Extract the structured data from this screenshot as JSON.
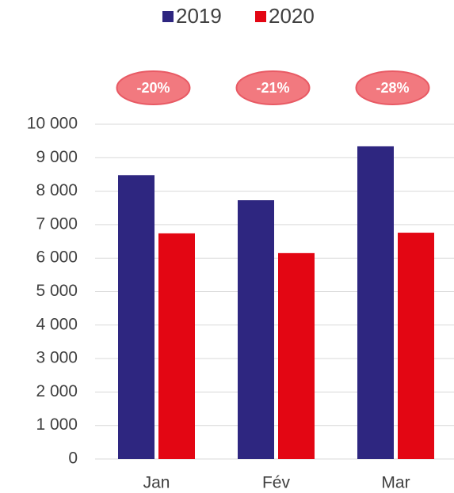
{
  "chart_data": {
    "type": "bar",
    "categories": [
      "Jan",
      "Fév",
      "Mar"
    ],
    "series": [
      {
        "name": "2019",
        "color": "#2e2680",
        "values": [
          8480,
          7730,
          9340
        ]
      },
      {
        "name": "2020",
        "color": "#e30613",
        "values": [
          6740,
          6150,
          6760
        ]
      }
    ],
    "annotations": [
      "-20%",
      "-21%",
      "-28%"
    ],
    "ylim": [
      0,
      10000
    ],
    "yticks": [
      0,
      {
        "value": 1000,
        "label": "1 000"
      },
      {
        "value": 2000,
        "label": "2 000"
      },
      {
        "value": 3000,
        "label": "3 000"
      },
      {
        "value": 4000,
        "label": "4 000"
      },
      {
        "value": 5000,
        "label": "5 000"
      },
      {
        "value": 6000,
        "label": "6 000"
      },
      {
        "value": 7000,
        "label": "7 000"
      },
      {
        "value": 8000,
        "label": "8 000"
      },
      {
        "value": 9000,
        "label": "9 000"
      },
      {
        "value": 10000,
        "label": "10 000"
      }
    ],
    "grid": true,
    "legend": "top"
  }
}
